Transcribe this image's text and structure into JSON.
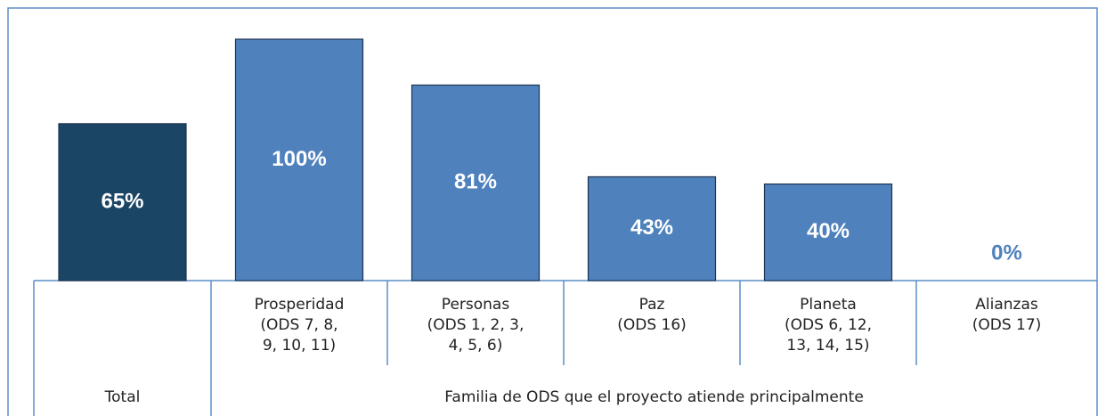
{
  "chart_data": {
    "type": "bar",
    "categories": [
      null,
      "Prosperidad\n(ODS 7, 8,\n9, 10, 11)",
      "Personas\n(ODS 1, 2, 3,\n4, 5, 6)",
      "Paz\n(ODS 16)",
      "Planeta\n(ODS 6, 12,\n13, 14, 15)",
      "Alianzas\n(ODS 17)"
    ],
    "values": [
      65,
      100,
      81,
      43,
      40,
      0
    ],
    "value_labels": [
      "65%",
      "100%",
      "81%",
      "43%",
      "40%",
      "0%"
    ],
    "colors": [
      "#1b4565",
      "#4f81bd",
      "#4f81bd",
      "#4f81bd",
      "#4f81bd",
      "#4f81bd"
    ],
    "group_labels": [
      "Total",
      "Familia de ODS que el proyecto atiende principalmente"
    ],
    "ylim": [
      0,
      100
    ]
  }
}
